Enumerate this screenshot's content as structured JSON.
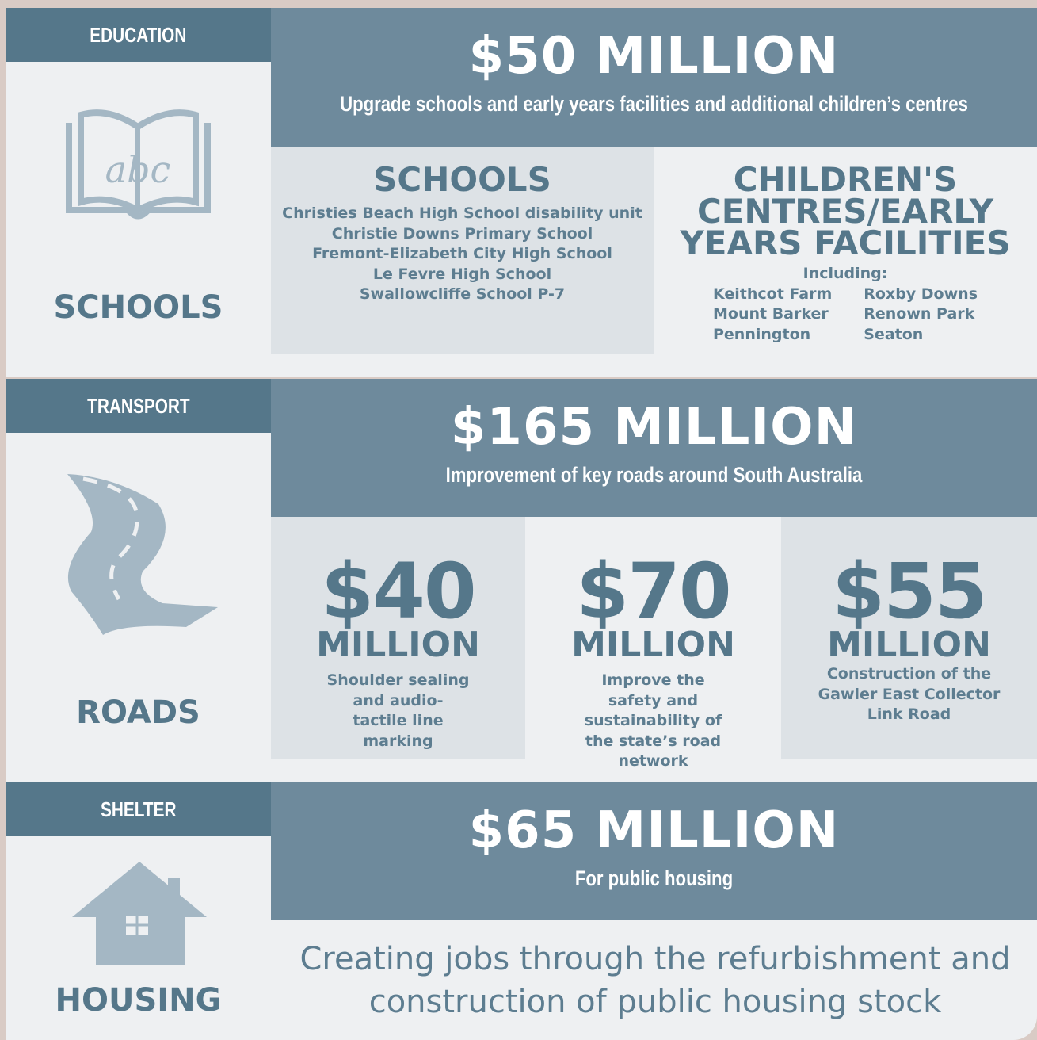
{
  "sections": [
    {
      "category": "EDUCATION",
      "label": "SCHOOLS",
      "headline": "$50 MILLION",
      "subtitle": "Upgrade schools and early years facilities and additional children’s centres",
      "schools": {
        "title": "SCHOOLS",
        "items": [
          "Christies Beach High School disability unit",
          "Christie Downs Primary School",
          "Fremont-Elizabeth City High School",
          "Le Fevre High School",
          "Swallowcliffe School P-7"
        ]
      },
      "centres": {
        "title": "CHILDREN'S CENTRES/EARLY YEARS FACILITIES",
        "intro": "Including:",
        "columns": [
          [
            "Keithcot Farm",
            "Mount Barker",
            "Pennington"
          ],
          [
            "Roxby Downs",
            "Renown Park",
            "Seaton"
          ]
        ]
      }
    },
    {
      "category": "TRANSPORT",
      "label": "ROADS",
      "headline": "$165 MILLION",
      "subtitle": "Improvement of key roads around South Australia",
      "projects": [
        {
          "amount": "$40",
          "unit": "MILLION",
          "description": "Shoulder sealing and audio-tactile line marking"
        },
        {
          "amount": "$70",
          "unit": "MILLION",
          "description": "Improve the safety and sustainability of the state’s road network"
        },
        {
          "amount": "$55",
          "unit": "MILLION",
          "description": "Construction of the Gawler East Collector Link Road"
        }
      ]
    },
    {
      "category": "SHELTER",
      "label": "HOUSING",
      "headline": "$65 MILLION",
      "subtitle": "For public housing",
      "note": "Creating jobs through the refurbishment and construction of public housing stock"
    }
  ]
}
